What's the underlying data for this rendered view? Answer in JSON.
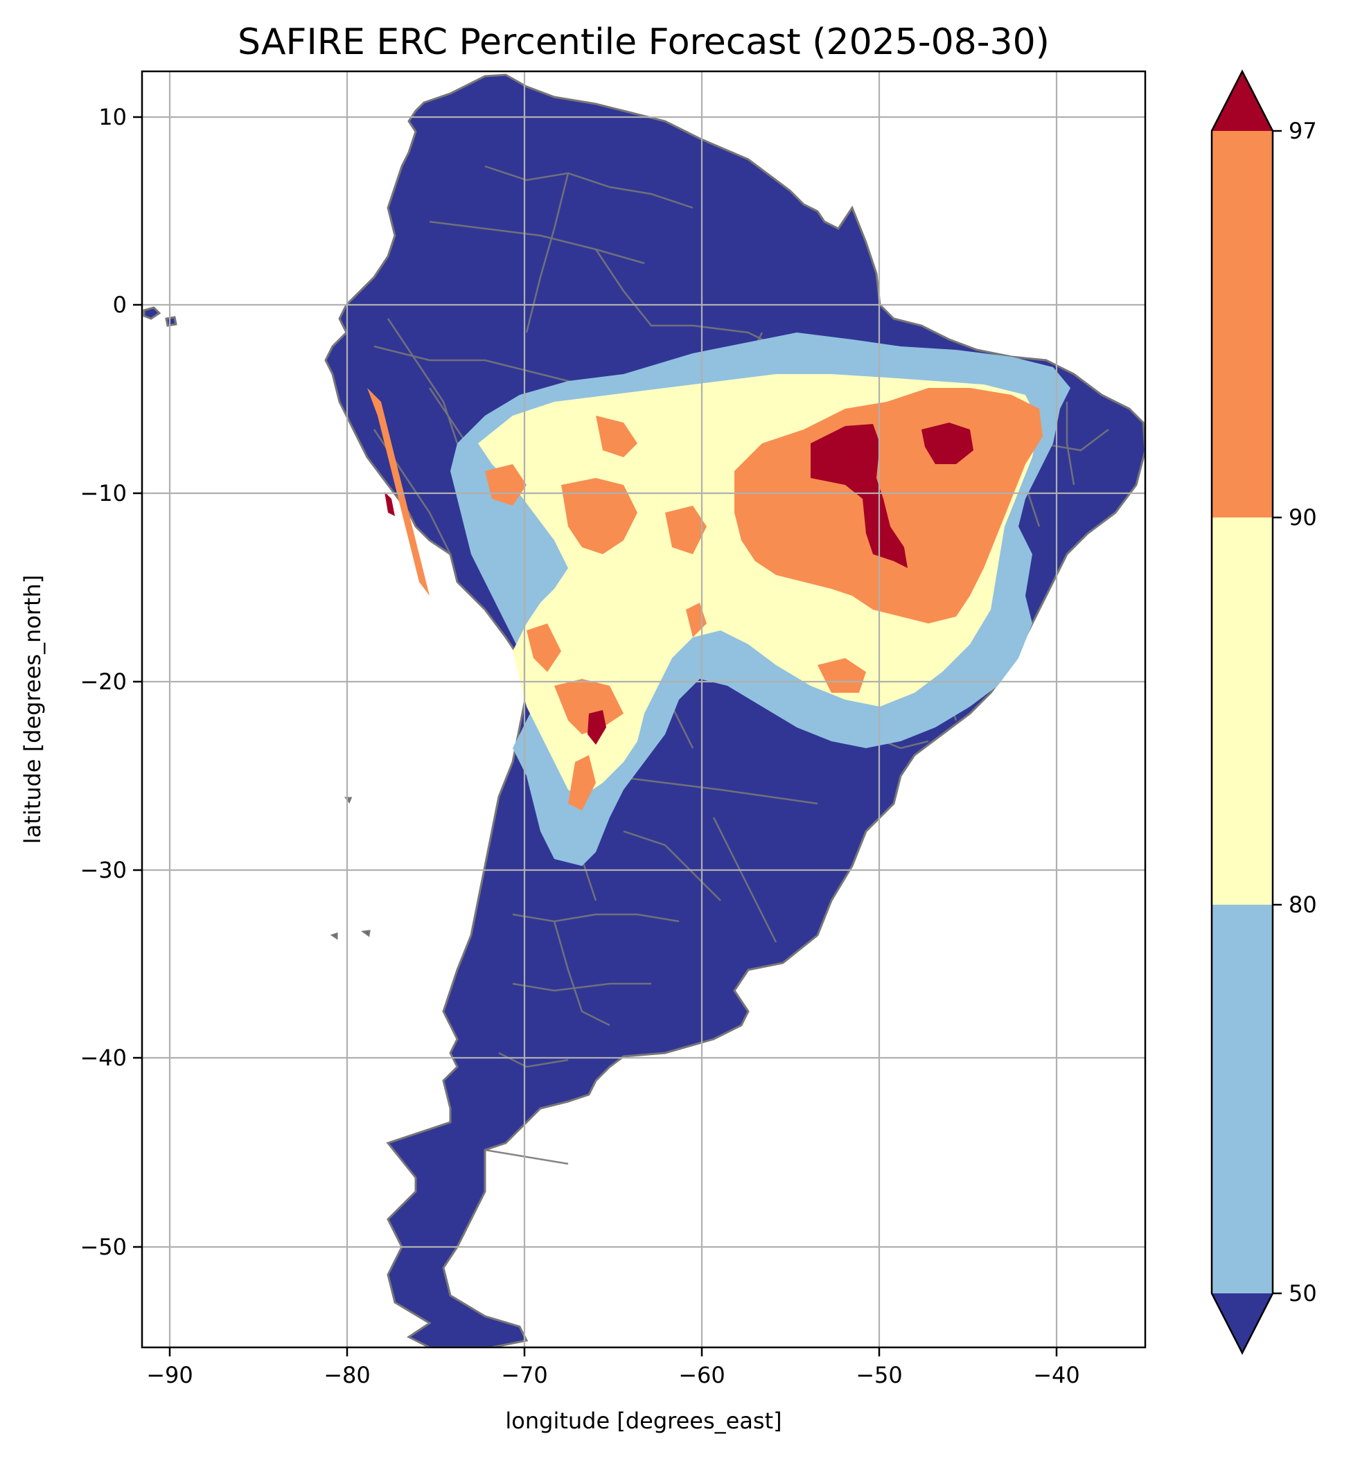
{
  "chart_data": {
    "type": "heatmap",
    "title": "SAFIRE ERC Percentile Forecast (2025-08-30)",
    "xlabel": "longitude [degrees_east]",
    "ylabel": "latitude [degrees_north]",
    "xlim": [
      -91.5,
      -35
    ],
    "ylim": [
      -55.5,
      12.3
    ],
    "xticks": [
      -90,
      -80,
      -70,
      -60,
      -50,
      -40
    ],
    "yticks": [
      10,
      0,
      -10,
      -20,
      -30,
      -40,
      -50
    ],
    "grid": true,
    "colorbar": {
      "position": "right",
      "extend": "both",
      "boundaries": [
        50,
        80,
        90,
        97
      ],
      "tick_labels": [
        "50",
        "80",
        "90",
        "97"
      ],
      "colors": {
        "below_50": "#313695",
        "50_80": "#91c1de",
        "80_90": "#ffffc0",
        "90_97": "#f88d51",
        "above_97": "#a50026"
      }
    },
    "regions": [
      {
        "category": "below_50",
        "color": "#313695",
        "description": "most of the continent: northern South America, Andes, southern cone, Patagonia"
      },
      {
        "category": "50_80",
        "color": "#91c1de",
        "description": "outer ring over central-southern Amazon, central Brazil, Paraguay, northern Argentina"
      },
      {
        "category": "80_90",
        "color": "#ffffc0",
        "description": "central Brazil, eastern Bolivia, southwestern Amazon"
      },
      {
        "category": "90_97",
        "color": "#f88d51",
        "description": "central-northeastern Brazil (~-55 to -42 lon, -5 to -18 lat), patches in Bolivia and northwest Argentina"
      },
      {
        "category": "above_97",
        "color": "#a50026",
        "description": "core near -53 to -48 lon, -7 to -14 lat; spot near -46 lon, -8 lat; small spot near -66 lon, -23 lat"
      }
    ]
  }
}
